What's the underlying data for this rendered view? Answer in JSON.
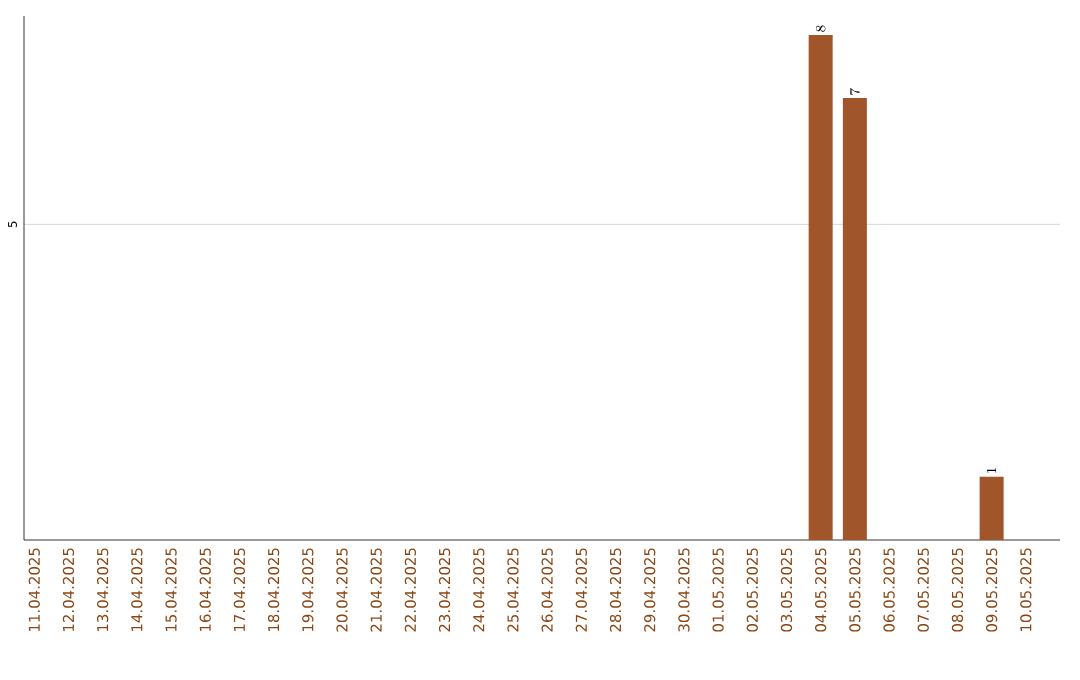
{
  "chart_data": {
    "type": "bar",
    "categories": [
      "11.04.2025",
      "12.04.2025",
      "13.04.2025",
      "14.04.2025",
      "15.04.2025",
      "16.04.2025",
      "17.04.2025",
      "18.04.2025",
      "19.04.2025",
      "20.04.2025",
      "21.04.2025",
      "22.04.2025",
      "23.04.2025",
      "24.04.2025",
      "25.04.2025",
      "26.04.2025",
      "27.04.2025",
      "28.04.2025",
      "29.04.2025",
      "30.04.2025",
      "01.05.2025",
      "02.05.2025",
      "03.05.2025",
      "04.05.2025",
      "05.05.2025",
      "06.05.2025",
      "07.05.2025",
      "08.05.2025",
      "09.05.2025",
      "10.05.2025"
    ],
    "values": [
      null,
      null,
      null,
      null,
      null,
      null,
      null,
      null,
      null,
      null,
      null,
      null,
      null,
      null,
      null,
      null,
      null,
      null,
      null,
      null,
      null,
      null,
      null,
      8,
      7,
      null,
      null,
      null,
      1,
      null
    ],
    "color": "#a0562a",
    "ylim": [
      0,
      8.3
    ],
    "yticks": [
      5
    ],
    "grid": "y",
    "data_labels": true
  }
}
